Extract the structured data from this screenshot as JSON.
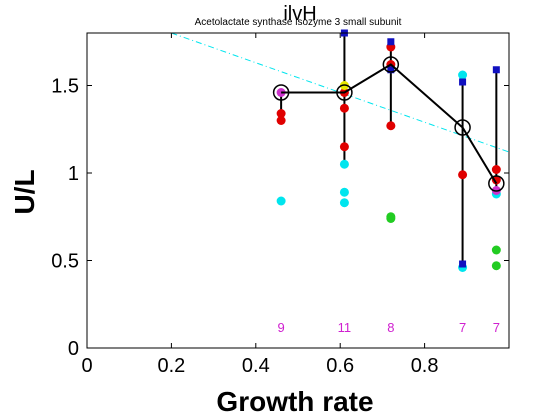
{
  "chart_data": {
    "type": "scatter",
    "title": "ilvH",
    "subtitle": "Acetolactate synthase isozyme 3 small subunit",
    "xlabel": "Growth rate",
    "ylabel": "U/L",
    "xlim": [
      0,
      1.0
    ],
    "ylim": [
      0,
      1.8
    ],
    "x_ticks": [
      0,
      0.2,
      0.4,
      0.6,
      0.8
    ],
    "y_ticks": [
      0,
      0.5,
      1,
      1.5
    ],
    "x_tick_labels": [
      "0",
      "0.2",
      "0.4",
      "0.6",
      "0.8"
    ],
    "y_tick_labels": [
      "0",
      "0.5",
      "1",
      "1.5"
    ],
    "grid": false,
    "legend": "none",
    "colors": {
      "red": "#e00000",
      "cyan": "#00e5ee",
      "green": "#22cc22",
      "blue": "#1010c0",
      "magenta": "#cc33cc",
      "yellow": "#e8e800",
      "black": "#000000"
    },
    "trend_line": {
      "color": "#00e5ee",
      "style": "dash-dot",
      "x": [
        0.2,
        1.0
      ],
      "y": [
        1.8,
        1.12
      ]
    },
    "mean_line": {
      "x": [
        0.46,
        0.61,
        0.72,
        0.89,
        0.97
      ],
      "y": [
        1.46,
        1.46,
        1.62,
        1.26,
        0.94
      ]
    },
    "range_bars": [
      {
        "x": 0.46,
        "low": 1.29,
        "high": 1.47
      },
      {
        "x": 0.61,
        "low": 1.05,
        "high": 1.78
      },
      {
        "x": 0.72,
        "low": 1.27,
        "high": 1.75
      },
      {
        "x": 0.89,
        "low": 0.47,
        "high": 1.53
      },
      {
        "x": 0.97,
        "low": 0.9,
        "high": 1.59
      }
    ],
    "series": [
      {
        "color": "red",
        "marker": "circle",
        "points": [
          [
            0.46,
            1.34
          ],
          [
            0.46,
            1.3
          ],
          [
            0.61,
            1.37
          ],
          [
            0.61,
            1.15
          ],
          [
            0.61,
            1.46
          ],
          [
            0.72,
            1.72
          ],
          [
            0.72,
            1.27
          ],
          [
            0.72,
            1.62
          ],
          [
            0.89,
            0.99
          ],
          [
            0.97,
            1.02
          ],
          [
            0.97,
            0.96
          ]
        ]
      },
      {
        "color": "cyan",
        "marker": "circle",
        "points": [
          [
            0.46,
            0.84
          ],
          [
            0.61,
            1.05
          ],
          [
            0.61,
            0.89
          ],
          [
            0.61,
            0.83
          ],
          [
            0.89,
            1.56
          ],
          [
            0.89,
            0.46
          ],
          [
            0.97,
            0.88
          ]
        ]
      },
      {
        "color": "green",
        "marker": "circle",
        "points": [
          [
            0.72,
            0.75
          ],
          [
            0.72,
            0.74
          ],
          [
            0.97,
            0.56
          ],
          [
            0.97,
            0.47
          ]
        ]
      },
      {
        "color": "magenta",
        "marker": "circle",
        "points": [
          [
            0.46,
            1.46
          ],
          [
            0.97,
            0.9
          ]
        ]
      },
      {
        "color": "yellow",
        "marker": "circle",
        "points": [
          [
            0.61,
            1.5
          ]
        ]
      },
      {
        "color": "blue",
        "marker": "square",
        "points": [
          [
            0.61,
            1.8
          ],
          [
            0.72,
            1.75
          ],
          [
            0.72,
            1.59
          ],
          [
            0.89,
            1.52
          ],
          [
            0.89,
            0.48
          ],
          [
            0.97,
            1.59
          ]
        ]
      }
    ],
    "counts": [
      {
        "x": 0.46,
        "label": "9"
      },
      {
        "x": 0.61,
        "label": "11"
      },
      {
        "x": 0.72,
        "label": "8"
      },
      {
        "x": 0.89,
        "label": "7"
      },
      {
        "x": 0.97,
        "label": "7"
      }
    ]
  }
}
